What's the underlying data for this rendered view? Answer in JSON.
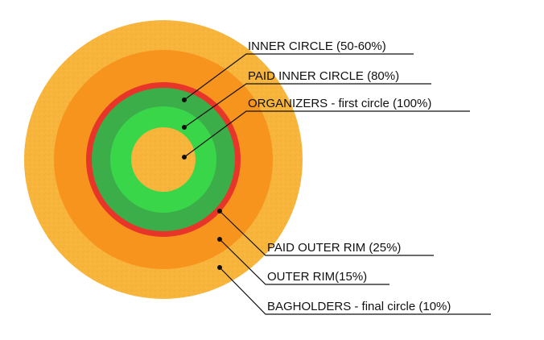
{
  "labels": {
    "inner_circle": "INNER CIRCLE (50-60%)",
    "paid_inner_circle": "PAID INNER CIRCLE (80%)",
    "organizers": "ORGANIZERS - first circle (100%)",
    "paid_outer_rim": "PAID OUTER RIM (25%)",
    "outer_rim": "OUTER RIM(15%)",
    "bagholders": "BAGHOLDERS - final circle (10%)"
  },
  "colors": {
    "bagholders_ring": "#F8B53B",
    "outer_rim_ring": "#F7941E",
    "red_border": "#E8352A",
    "inner_circle_ring": "#3BAE49",
    "paid_inner_ring": "#39D64A",
    "organizers_core": "#F8B53B"
  }
}
